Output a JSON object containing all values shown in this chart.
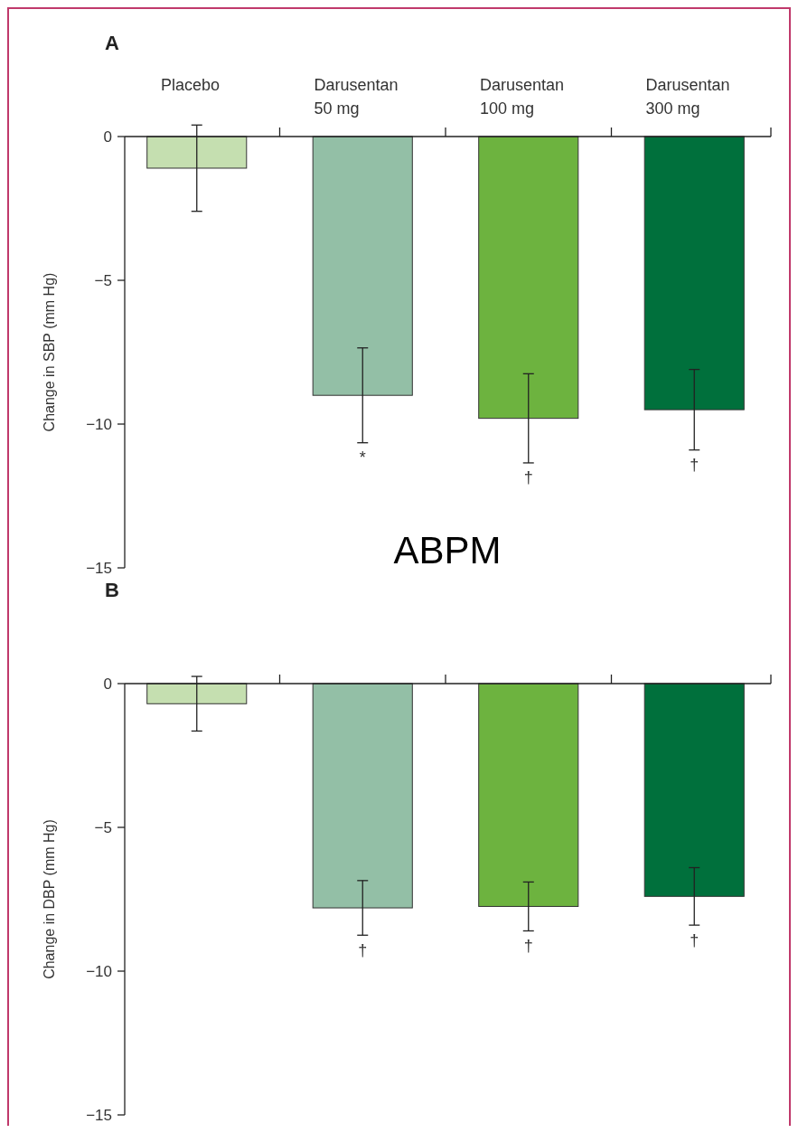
{
  "chart_data": [
    {
      "type": "bar",
      "title": "A",
      "ylabel": "Change in SBP (mm Hg)",
      "categories": [
        "Placebo",
        "Darusentan\n50 mg",
        "Darusentan\n100 mg",
        "Darusentan\n300 mg"
      ],
      "values": [
        -1.1,
        -9.0,
        -9.8,
        -9.5
      ],
      "errors": [
        1.5,
        1.65,
        1.55,
        1.4
      ],
      "colors": [
        "#c5dfb0",
        "#93bfa6",
        "#6db33f",
        "#00703c"
      ],
      "ylim": [
        -15,
        0
      ],
      "yticks": [
        -15,
        -10,
        -5,
        0
      ],
      "grid": false,
      "annotations": [
        "*",
        "†",
        "†",
        "ABPM"
      ]
    },
    {
      "type": "bar",
      "title": "B",
      "ylabel": "Change in DBP (mm Hg)",
      "categories": [
        null,
        null,
        null,
        null
      ],
      "values": [
        -0.7,
        -7.8,
        -7.75,
        -7.4
      ],
      "errors": [
        0.95,
        0.95,
        0.85,
        1.0
      ],
      "colors": [
        "#c5dfb0",
        "#93bfa6",
        "#6db33f",
        "#00703c"
      ],
      "ylim": [
        -15,
        0
      ],
      "yticks": [
        -15,
        -10,
        -5,
        0
      ],
      "grid": false,
      "tick_labels": "y",
      "annotations": [
        "†",
        "†",
        "†"
      ]
    }
  ]
}
